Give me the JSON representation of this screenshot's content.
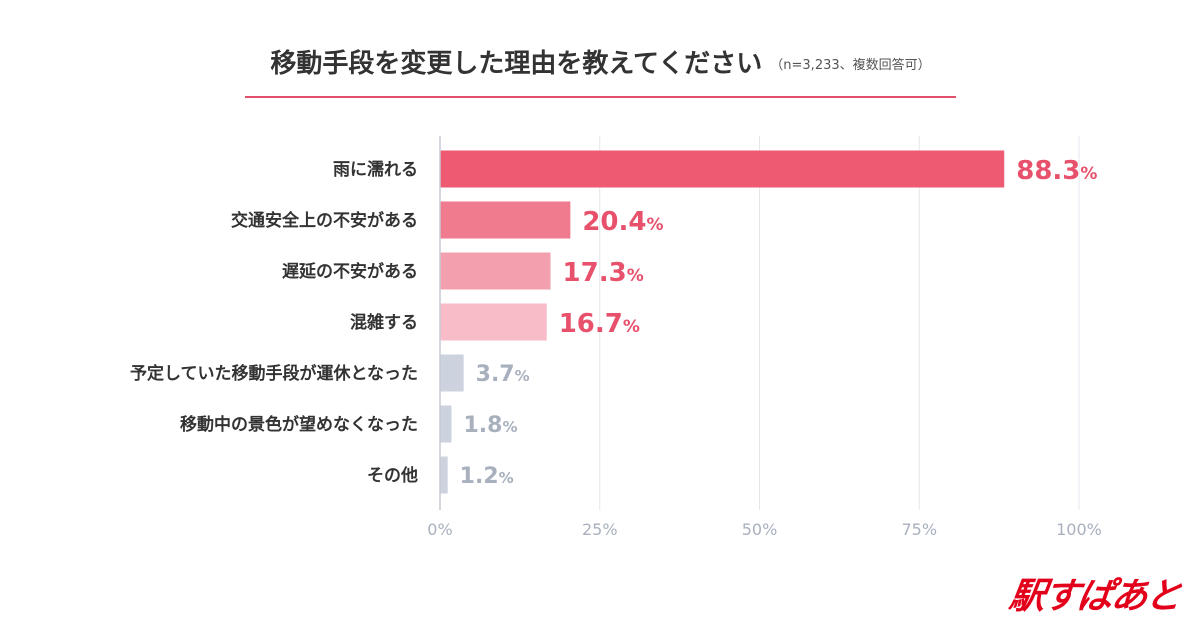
{
  "chart_data": {
    "type": "bar",
    "orientation": "horizontal",
    "title": "移動手段を変更した理由を教えてください",
    "subtitle": "（n=3,233、複数回答可）",
    "categories": [
      "雨に濡れる",
      "交通安全上の不安がある",
      "遅延の不安がある",
      "混雑する",
      "予定していた移動手段が運休となった",
      "移動中の景色が望めなくなった",
      "その他"
    ],
    "values": [
      88.3,
      20.4,
      17.3,
      16.7,
      3.7,
      1.8,
      1.2
    ],
    "value_labels": [
      "88.3",
      "20.4",
      "17.3",
      "16.7",
      "3.7",
      "1.8",
      "1.2"
    ],
    "value_suffix": "%",
    "bar_colors": [
      "#ee5a72",
      "#f07a8e",
      "#f3a0ae",
      "#f7bcc7",
      "#ccd3de",
      "#ccd3de",
      "#ccd3de"
    ],
    "label_colors": [
      "#e8516c",
      "#e8516c",
      "#e8516c",
      "#e8516c",
      "#a8b0be",
      "#a8b0be",
      "#a8b0be"
    ],
    "xlim": [
      0,
      100
    ],
    "xticks": [
      0,
      25,
      50,
      75,
      100
    ],
    "xtick_labels": [
      "0%",
      "25%",
      "50%",
      "75%",
      "100%"
    ],
    "grid": true
  },
  "brand": {
    "logo_text": "駅すぱあと",
    "color": "#e3001b"
  }
}
